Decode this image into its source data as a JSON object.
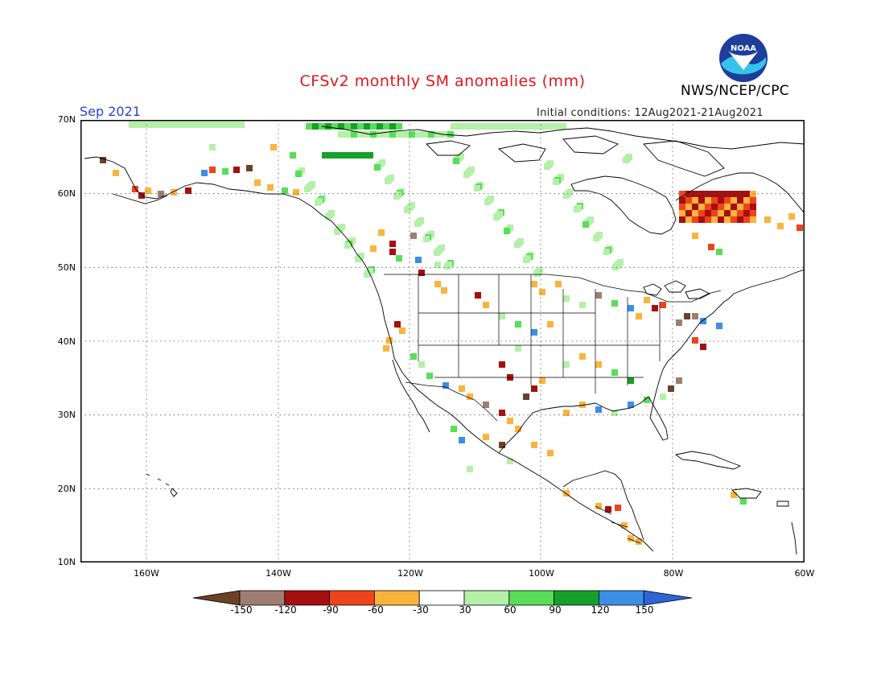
{
  "header": {
    "title": "CFSv2 monthly SM anomalies (mm)",
    "month": "Sep 2021",
    "initial_conditions": "Initial conditions: 12Aug2021-21Aug2021",
    "agency": "NWS/NCEP/CPC",
    "logo_text": "NOAA"
  },
  "map": {
    "lat_labels": [
      "70N",
      "60N",
      "50N",
      "40N",
      "30N",
      "20N",
      "10N"
    ],
    "lon_labels": [
      "160W",
      "140W",
      "120W",
      "100W",
      "80W",
      "60W"
    ],
    "domain": {
      "lon_range": [
        "170W",
        "60W"
      ],
      "lat_range": [
        "10N",
        "70N"
      ]
    },
    "gridlines": "dotted"
  },
  "colorbar": {
    "ticks": [
      "-150",
      "-120",
      "-90",
      "-60",
      "-30",
      "30",
      "60",
      "90",
      "120",
      "150"
    ],
    "colors": [
      "#6b4226",
      "#a07d70",
      "#a50f0f",
      "#f0431a",
      "#fbb43b",
      "#ffffff",
      "#b4f0a8",
      "#58de58",
      "#15a02a",
      "#3c8ee6",
      "#2f64d8"
    ]
  }
}
